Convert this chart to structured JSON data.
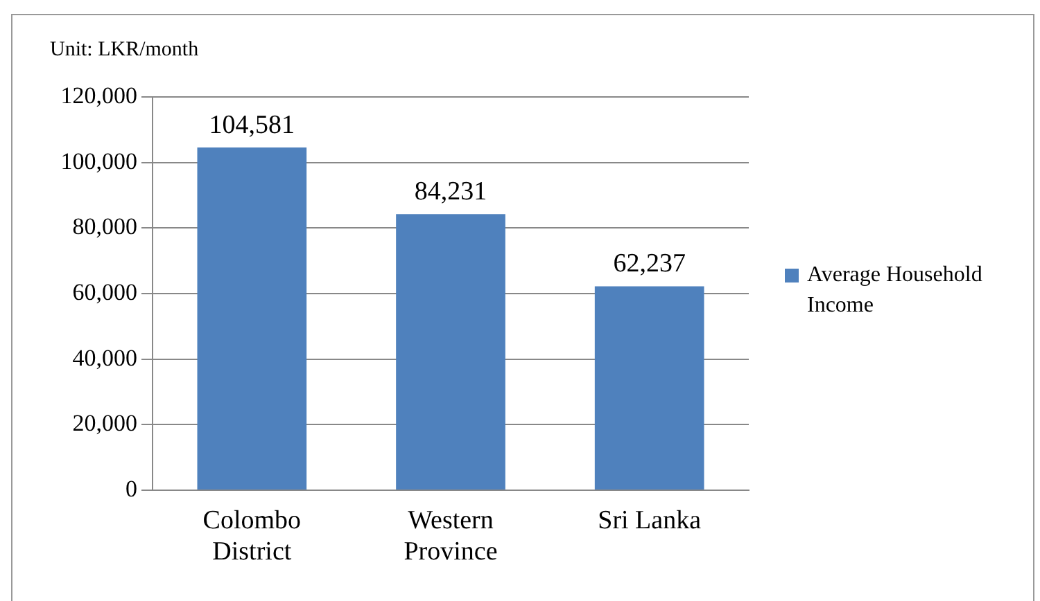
{
  "chart_data": {
    "type": "bar",
    "categories": [
      "Colombo District",
      "Western Province",
      "Sri Lanka"
    ],
    "series": [
      {
        "name": "Average Household Income",
        "color": "#4f81bd",
        "values": [
          104581,
          84231,
          62237
        ],
        "value_labels": [
          "104,581",
          "84,231",
          "62,237"
        ]
      }
    ],
    "ylim": [
      0,
      120000
    ],
    "yticks": [
      {
        "value": 0,
        "label": "0"
      },
      {
        "value": 20000,
        "label": "20,000"
      },
      {
        "value": 40000,
        "label": "40,000"
      },
      {
        "value": 60000,
        "label": "60,000"
      },
      {
        "value": 80000,
        "label": "80,000"
      },
      {
        "value": 100000,
        "label": "100,000"
      },
      {
        "value": 120000,
        "label": "120,000"
      }
    ],
    "grid": "y",
    "legend": "right",
    "annotations": [
      "Unit:  LKR/month"
    ]
  }
}
